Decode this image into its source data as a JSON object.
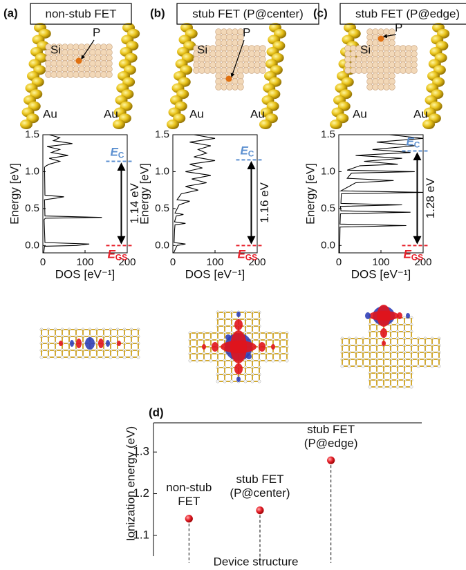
{
  "panels": [
    {
      "label": "(a)",
      "title": "non-stub FET",
      "si": "Si",
      "p": "P",
      "au_left": "Au",
      "au_right": "Au"
    },
    {
      "label": "(b)",
      "title": "stub FET (P@center)",
      "si": "Si",
      "p": "P",
      "au_left": "Au",
      "au_right": "Au"
    },
    {
      "label": "(c)",
      "title": "stub FET (P@edge)",
      "si": "Si",
      "p": "P",
      "au_left": "Au",
      "au_right": "Au"
    }
  ],
  "chart_data": [
    {
      "type": "line",
      "orientation": "horizontal",
      "xlabel": "Energy [eV]",
      "ylabel": "DOS [eV⁻¹]",
      "xlim": [
        -0.1,
        1.5
      ],
      "xticks": [
        {
          "value": 0,
          "label": "0.0"
        },
        0.5,
        {
          "value": 1,
          "label": "1.0"
        },
        1.5
      ],
      "ylim": [
        0,
        200
      ],
      "yticks": [
        0,
        100,
        200
      ],
      "x": [
        -0.1,
        -0.01,
        0.0,
        0.02,
        0.04,
        0.35,
        0.37,
        0.38,
        0.4,
        0.62,
        0.64,
        0.66,
        0.68,
        1.06,
        1.08,
        1.1,
        1.14,
        1.18,
        1.22,
        1.26,
        1.3,
        1.34,
        1.38,
        1.42,
        1.46,
        1.5
      ],
      "series": [
        {
          "color": "#000000",
          "values": [
            2,
            4,
            80,
            110,
            5,
            3,
            6,
            140,
            5,
            4,
            30,
            50,
            5,
            4,
            8,
            15,
            40,
            15,
            60,
            20,
            40,
            10,
            70,
            25,
            40,
            15
          ]
        }
      ],
      "annotations": {
        "ec_level": 1.14,
        "gs_level": 0,
        "gap_label": "1.14 eV",
        "ec": "E",
        "ec_sub": "C",
        "gs": "E",
        "gs_sub": "GS",
        "ec_color": "#5b8fd0",
        "gs_color": "#e8202a"
      }
    },
    {
      "type": "line",
      "orientation": "horizontal",
      "xlabel": "Energy [eV]",
      "ylabel": "DOS [eV⁻¹]",
      "xlim": [
        -0.1,
        1.5
      ],
      "xticks": [
        {
          "value": 0,
          "label": "0.0"
        },
        0.5,
        {
          "value": 1,
          "label": "1.0"
        },
        1.5
      ],
      "ylim": [
        0,
        200
      ],
      "yticks": [
        0,
        100,
        200
      ],
      "x": [
        -0.1,
        0.0,
        0.02,
        0.04,
        0.2,
        0.28,
        0.3,
        0.32,
        0.4,
        0.42,
        0.44,
        0.55,
        0.6,
        0.62,
        0.7,
        0.75,
        0.8,
        0.85,
        0.9,
        0.95,
        1.0,
        1.05,
        1.1,
        1.15,
        1.2,
        1.25,
        1.3,
        1.35,
        1.4,
        1.45,
        1.5
      ],
      "series": [
        {
          "color": "#000000",
          "values": [
            2,
            10,
            30,
            3,
            4,
            5,
            30,
            4,
            8,
            25,
            5,
            15,
            40,
            10,
            20,
            60,
            30,
            80,
            45,
            90,
            30,
            70,
            40,
            100,
            50,
            80,
            60,
            90,
            40,
            100,
            50
          ]
        }
      ],
      "annotations": {
        "ec_level": 1.16,
        "gs_level": 0,
        "gap_label": "1.16 eV",
        "ec": "E",
        "ec_sub": "C",
        "gs": "E",
        "gs_sub": "GS",
        "ec_color": "#5b8fd0",
        "gs_color": "#e8202a"
      }
    },
    {
      "type": "line",
      "orientation": "horizontal",
      "xlabel": "Energy [eV]",
      "ylabel": "DOS [eV⁻¹]",
      "xlim": [
        -0.1,
        1.5
      ],
      "xticks": [
        {
          "value": 0,
          "label": "0.0"
        },
        0.5,
        {
          "value": 1,
          "label": "1.0"
        },
        1.5
      ],
      "ylim": [
        0,
        200
      ],
      "yticks": [
        0,
        100,
        200
      ],
      "x": [
        -0.1,
        0.25,
        0.27,
        0.29,
        0.43,
        0.45,
        0.47,
        0.53,
        0.55,
        0.57,
        0.7,
        0.72,
        0.74,
        0.85,
        0.88,
        0.91,
        0.98,
        1.0,
        1.02,
        1.08,
        1.1,
        1.14,
        1.18,
        1.22,
        1.26,
        1.3,
        1.35,
        1.4,
        1.45,
        1.5
      ],
      "series": [
        {
          "color": "#000000",
          "values": [
            2,
            3,
            160,
            3,
            4,
            170,
            5,
            4,
            150,
            5,
            6,
            200,
            5,
            40,
            130,
            20,
            30,
            180,
            20,
            50,
            140,
            60,
            150,
            40,
            170,
            80,
            180,
            90,
            200,
            120
          ]
        }
      ],
      "annotations": {
        "ec_level": 1.28,
        "gs_level": 0,
        "gap_label": "1.28 eV",
        "ec": "E",
        "ec_sub": "C",
        "gs": "E",
        "gs_sub": "GS",
        "ec_color": "#5b8fd0",
        "gs_color": "#e8202a"
      }
    },
    {
      "type": "stem",
      "title": "(d)",
      "xlabel": "Device structure",
      "ylabel": "Ionization energy (eV)",
      "categories": [
        [
          "non-stub",
          "FET"
        ],
        [
          "stub FET",
          "(P@center)"
        ],
        [
          "stub FET",
          "(P@edge)"
        ]
      ],
      "values": [
        1.14,
        1.16,
        1.28
      ],
      "color": "#e8202a",
      "ylim": [
        1.05,
        1.37
      ],
      "yticks": [
        1.1,
        1.2,
        1.3
      ]
    }
  ]
}
